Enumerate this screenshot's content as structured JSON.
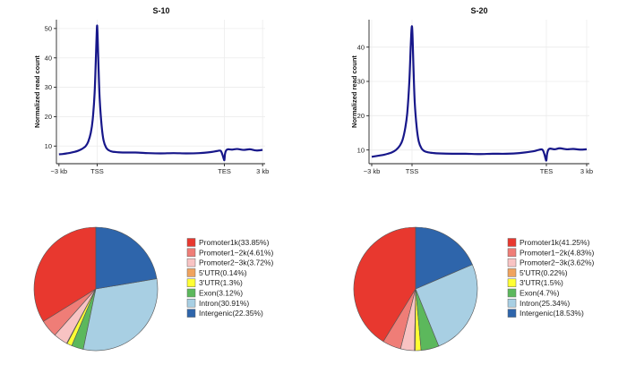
{
  "chart_data": [
    {
      "type": "line",
      "title": "S-10",
      "xlabel": "",
      "ylabel": "Normalized read count",
      "x_tick_labels": [
        "−3 kb",
        "TSS",
        "TES",
        "3 kb"
      ],
      "x_tick_positions": [
        -3000,
        0,
        10000,
        13000
      ],
      "xlim": [
        -3200,
        13200
      ],
      "ylim": [
        4,
        53
      ],
      "y_ticks": [
        10,
        20,
        30,
        40,
        50
      ],
      "grid": true,
      "series": [
        {
          "name": "S-10",
          "color": "#17178a",
          "x": [
            -3000,
            -2700,
            -2400,
            -2100,
            -1800,
            -1500,
            -1200,
            -900,
            -700,
            -500,
            -350,
            -200,
            -100,
            -40,
            0,
            40,
            100,
            200,
            350,
            500,
            700,
            900,
            1200,
            1600,
            2000,
            3000,
            4000,
            5000,
            6000,
            7000,
            8000,
            9000,
            9400,
            9700,
            9850,
            9950,
            10000,
            10050,
            10150,
            10300,
            10600,
            11000,
            11500,
            12000,
            12500,
            13000
          ],
          "values": [
            7.2,
            7.3,
            7.5,
            7.7,
            8.0,
            8.4,
            9.0,
            10.0,
            11.5,
            14.5,
            19.0,
            28.0,
            40.0,
            48.0,
            51.0,
            47.0,
            38.0,
            26.0,
            17.0,
            12.0,
            9.5,
            8.6,
            8.1,
            7.9,
            7.8,
            7.8,
            7.6,
            7.5,
            7.6,
            7.5,
            7.6,
            8.0,
            8.3,
            8.4,
            7.0,
            5.6,
            5.3,
            7.4,
            8.6,
            8.9,
            8.8,
            9.0,
            8.7,
            8.9,
            8.5,
            8.7
          ]
        }
      ]
    },
    {
      "type": "line",
      "title": "S-20",
      "xlabel": "",
      "ylabel": "Normalized read count",
      "x_tick_labels": [
        "−3 kb",
        "TSS",
        "TES",
        "3 kb"
      ],
      "x_tick_positions": [
        -3000,
        0,
        10000,
        13000
      ],
      "xlim": [
        -3200,
        13200
      ],
      "ylim": [
        6,
        48
      ],
      "y_ticks": [
        10,
        20,
        30,
        40
      ],
      "grid": true,
      "series": [
        {
          "name": "S-20",
          "color": "#17178a",
          "x": [
            -3000,
            -2700,
            -2400,
            -2100,
            -1800,
            -1500,
            -1200,
            -900,
            -700,
            -500,
            -350,
            -200,
            -100,
            -40,
            0,
            40,
            100,
            200,
            350,
            500,
            700,
            900,
            1200,
            1600,
            2000,
            3000,
            4000,
            5000,
            6000,
            7000,
            8000,
            9000,
            9400,
            9700,
            9850,
            9950,
            10000,
            10050,
            10150,
            10300,
            10600,
            11000,
            11500,
            12000,
            12500,
            13000
          ],
          "values": [
            8.0,
            8.2,
            8.4,
            8.6,
            8.9,
            9.3,
            10.0,
            11.3,
            13.0,
            16.5,
            21.0,
            30.0,
            40.0,
            45.0,
            46.0,
            43.0,
            35.0,
            24.0,
            16.5,
            12.5,
            10.5,
            9.7,
            9.3,
            9.1,
            9.0,
            8.9,
            8.9,
            8.8,
            8.9,
            8.9,
            9.1,
            9.6,
            10.0,
            10.1,
            8.8,
            7.3,
            7.0,
            8.8,
            10.1,
            10.4,
            10.2,
            10.5,
            10.2,
            10.3,
            10.1,
            10.2
          ]
        }
      ]
    },
    {
      "type": "pie",
      "title": "",
      "start": "top, counter-clockwise",
      "categories": [
        "Promoter1k(33.85%)",
        "Promoter1−2k(4.61%)",
        "Promoter2−3k(3.72%)",
        "5'UTR(0.14%)",
        "3'UTR(1.3%)",
        "Exon(3.12%)",
        "Intron(30.91%)",
        "Intergenic(22.35%)"
      ],
      "values": [
        33.85,
        4.61,
        3.72,
        0.14,
        1.3,
        3.12,
        30.91,
        22.35
      ],
      "colors": [
        "#e8382f",
        "#ef7d77",
        "#f8c3c3",
        "#f0a35e",
        "#ffff33",
        "#5cb85c",
        "#a8cfe3",
        "#2e65ab"
      ]
    },
    {
      "type": "pie",
      "title": "",
      "start": "top, counter-clockwise",
      "categories": [
        "Promoter1k(41.25%)",
        "Promoter1−2k(4.83%)",
        "Promoter2−3k(3.62%)",
        "5'UTR(0.22%)",
        "3'UTR(1.5%)",
        "Exon(4.7%)",
        "Intron(25.34%)",
        "Intergenic(18.53%)"
      ],
      "values": [
        41.25,
        4.83,
        3.62,
        0.22,
        1.5,
        4.7,
        25.34,
        18.53
      ],
      "colors": [
        "#e8382f",
        "#ef7d77",
        "#f8c3c3",
        "#f0a35e",
        "#ffff33",
        "#5cb85c",
        "#a8cfe3",
        "#2e65ab"
      ]
    }
  ]
}
